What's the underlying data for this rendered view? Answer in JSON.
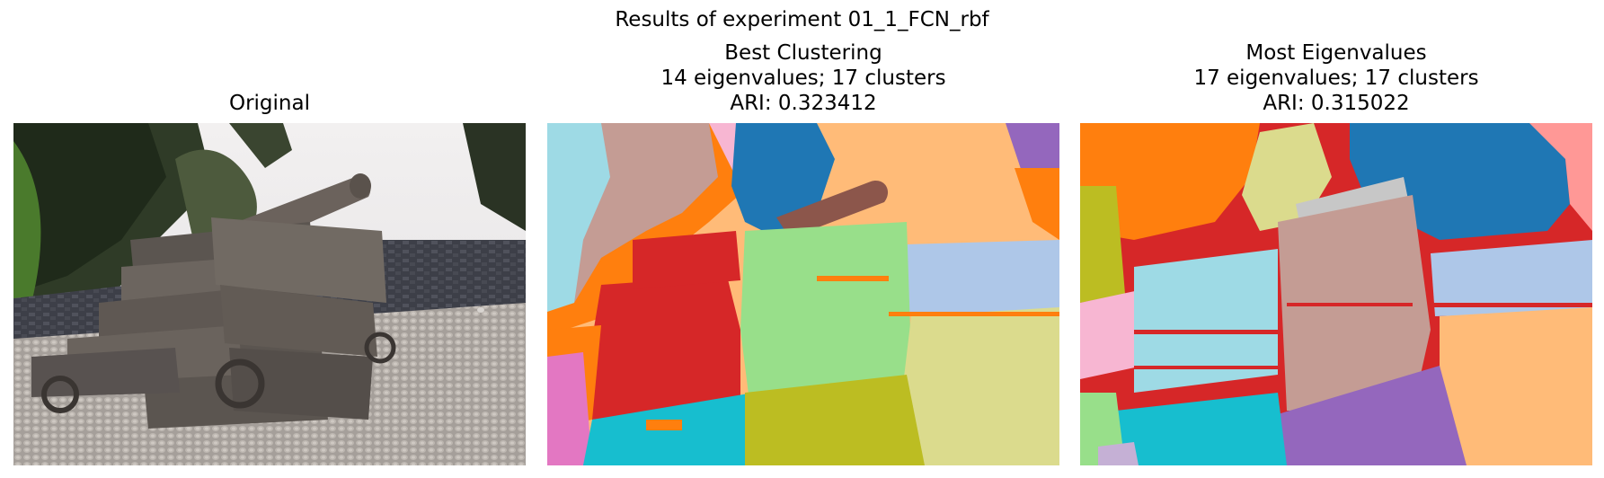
{
  "figure": {
    "suptitle": "Results of experiment 01_1_FCN_rbf"
  },
  "panels": [
    {
      "title_lines": [
        "Original"
      ],
      "kind": "photo"
    },
    {
      "title_lines": [
        "Best Clustering",
        "14 eigenvalues; 17 clusters",
        "ARI: 0.323412"
      ],
      "kind": "segmentation"
    },
    {
      "title_lines": [
        "Most Eigenvalues",
        "17 eigenvalues; 17 clusters",
        "ARI: 0.315022"
      ],
      "kind": "segmentation"
    }
  ],
  "palette": {
    "blue": "#1f77b4",
    "light_blue": "#aec7e8",
    "orange": "#ff7f0e",
    "light_orange": "#ffbb78",
    "green": "#2ca02c",
    "light_green": "#98df8a",
    "red": "#d62728",
    "pink_red": "#ff9896",
    "purple": "#9467bd",
    "light_purple": "#c5b0d5",
    "brown": "#8c564b",
    "tan": "#c49c94",
    "pink": "#e377c2",
    "light_pink": "#f7b6d2",
    "grey": "#c7c7c7",
    "olive": "#bcbd22",
    "khaki": "#dbdb8d",
    "cyan": "#17becf",
    "light_cyan": "#9edae5"
  }
}
